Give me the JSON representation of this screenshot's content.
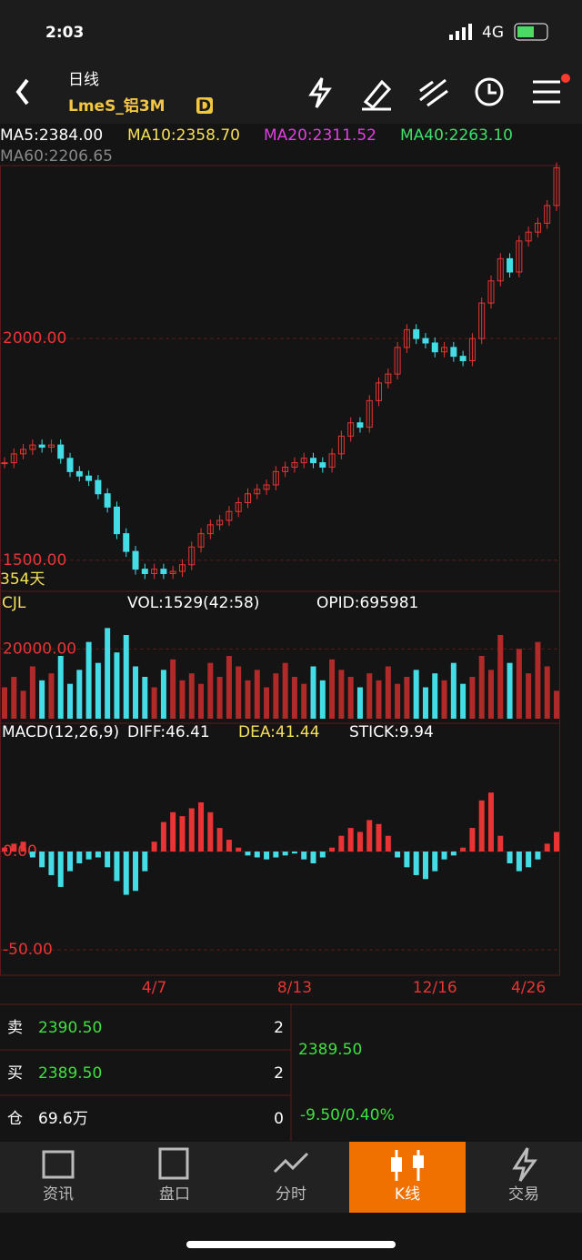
{
  "status": {
    "time": "2:03",
    "network": "4G"
  },
  "header": {
    "period": "日线",
    "symbol": "LmeS_铝3M",
    "badge": "D"
  },
  "ma_labels": {
    "ma5": "MA5:2384.00",
    "ma10": "MA10:2358.70",
    "ma20": "MA20:2311.52",
    "ma40": "MA40:2263.10",
    "ma60": "MA60:2206.65"
  },
  "chart_data": [
    {
      "type": "candlestick",
      "days_label": "354天",
      "categories": [
        null,
        null,
        null,
        null,
        null,
        null,
        null,
        null,
        null,
        null,
        null,
        null,
        null,
        null,
        null,
        null,
        "4/7",
        null,
        null,
        null,
        null,
        null,
        null,
        null,
        null,
        null,
        null,
        null,
        null,
        null,
        null,
        "8/13",
        null,
        null,
        null,
        null,
        null,
        null,
        null,
        null,
        null,
        null,
        null,
        null,
        null,
        null,
        "12/16",
        null,
        null,
        null,
        null,
        null,
        null,
        null,
        null,
        null,
        "4/26",
        null,
        null,
        null
      ],
      "values": [
        1720,
        1740,
        1750,
        1760,
        1755,
        1760,
        1730,
        1700,
        1690,
        1680,
        1650,
        1620,
        1560,
        1520,
        1480,
        1470,
        1480,
        1470,
        1475,
        1490,
        1530,
        1560,
        1580,
        1590,
        1610,
        1630,
        1650,
        1660,
        1670,
        1700,
        1710,
        1720,
        1730,
        1720,
        1710,
        1740,
        1780,
        1810,
        1800,
        1860,
        1900,
        1920,
        1980,
        2020,
        2000,
        1990,
        1970,
        1980,
        1960,
        1950,
        2000,
        2080,
        2130,
        2180,
        2150,
        2220,
        2240,
        2260,
        2300,
        2385
      ],
      "up_color": "#e83434",
      "down_color": "#44dde6",
      "ylim": [
        1430,
        2390
      ],
      "yticks": [
        {
          "value": 1500,
          "label": "1500.00"
        },
        {
          "value": 2000,
          "label": "2000.00"
        }
      ]
    },
    {
      "type": "bar",
      "title": "CJL",
      "subtitle": "VOL:1529(42:58)",
      "annotation": "OPID:695981",
      "values": [
        9000,
        12000,
        8000,
        15000,
        11000,
        13000,
        18000,
        10000,
        14000,
        22000,
        16000,
        26000,
        19000,
        24000,
        15000,
        12000,
        9000,
        14000,
        17000,
        11000,
        13000,
        10000,
        16000,
        12000,
        18000,
        15000,
        11000,
        14000,
        9000,
        13000,
        16000,
        12000,
        10000,
        15000,
        11000,
        17000,
        14000,
        12000,
        9000,
        13000,
        11000,
        15000,
        10000,
        12000,
        14000,
        9000,
        13000,
        11000,
        16000,
        10000,
        12000,
        18000,
        14000,
        24000,
        16000,
        20000,
        13000,
        22000,
        15000,
        8000
      ],
      "ylim": [
        0,
        30000
      ],
      "yticks": [
        {
          "value": 20000,
          "label": "20000.00"
        }
      ]
    },
    {
      "type": "macd",
      "title": "MACD(12,26,9)",
      "diff": "DIFF:46.41",
      "dea": "DEA:41.44",
      "stick": "STICK:9.94",
      "values": [
        2,
        4,
        5,
        -3,
        -8,
        -12,
        -18,
        -10,
        -6,
        -4,
        -3,
        -8,
        -15,
        -22,
        -20,
        -10,
        5,
        15,
        20,
        18,
        22,
        25,
        20,
        12,
        6,
        2,
        -2,
        -3,
        -4,
        -3,
        -2,
        -1,
        -4,
        -6,
        -3,
        2,
        8,
        12,
        10,
        16,
        14,
        8,
        -3,
        -8,
        -12,
        -14,
        -10,
        -4,
        -2,
        2,
        12,
        26,
        30,
        8,
        -6,
        -10,
        -8,
        -4,
        4,
        9.94
      ],
      "ylim": [
        -62,
        56
      ],
      "yticks": [
        {
          "value": 0,
          "label": "0.00"
        },
        {
          "value": -50,
          "label": "-50.00"
        }
      ]
    }
  ],
  "quote": {
    "sell_label": "卖",
    "sell_price": "2390.50",
    "sell_qty": "2",
    "buy_label": "买",
    "buy_price": "2389.50",
    "buy_qty": "2",
    "oi_label": "仓",
    "oi": "69.6万",
    "oi_chg": "0",
    "last": "2389.50",
    "change": "-9.50/0.40%"
  },
  "tabs": [
    "资讯",
    "盘口",
    "分时",
    "K线",
    "交易"
  ]
}
